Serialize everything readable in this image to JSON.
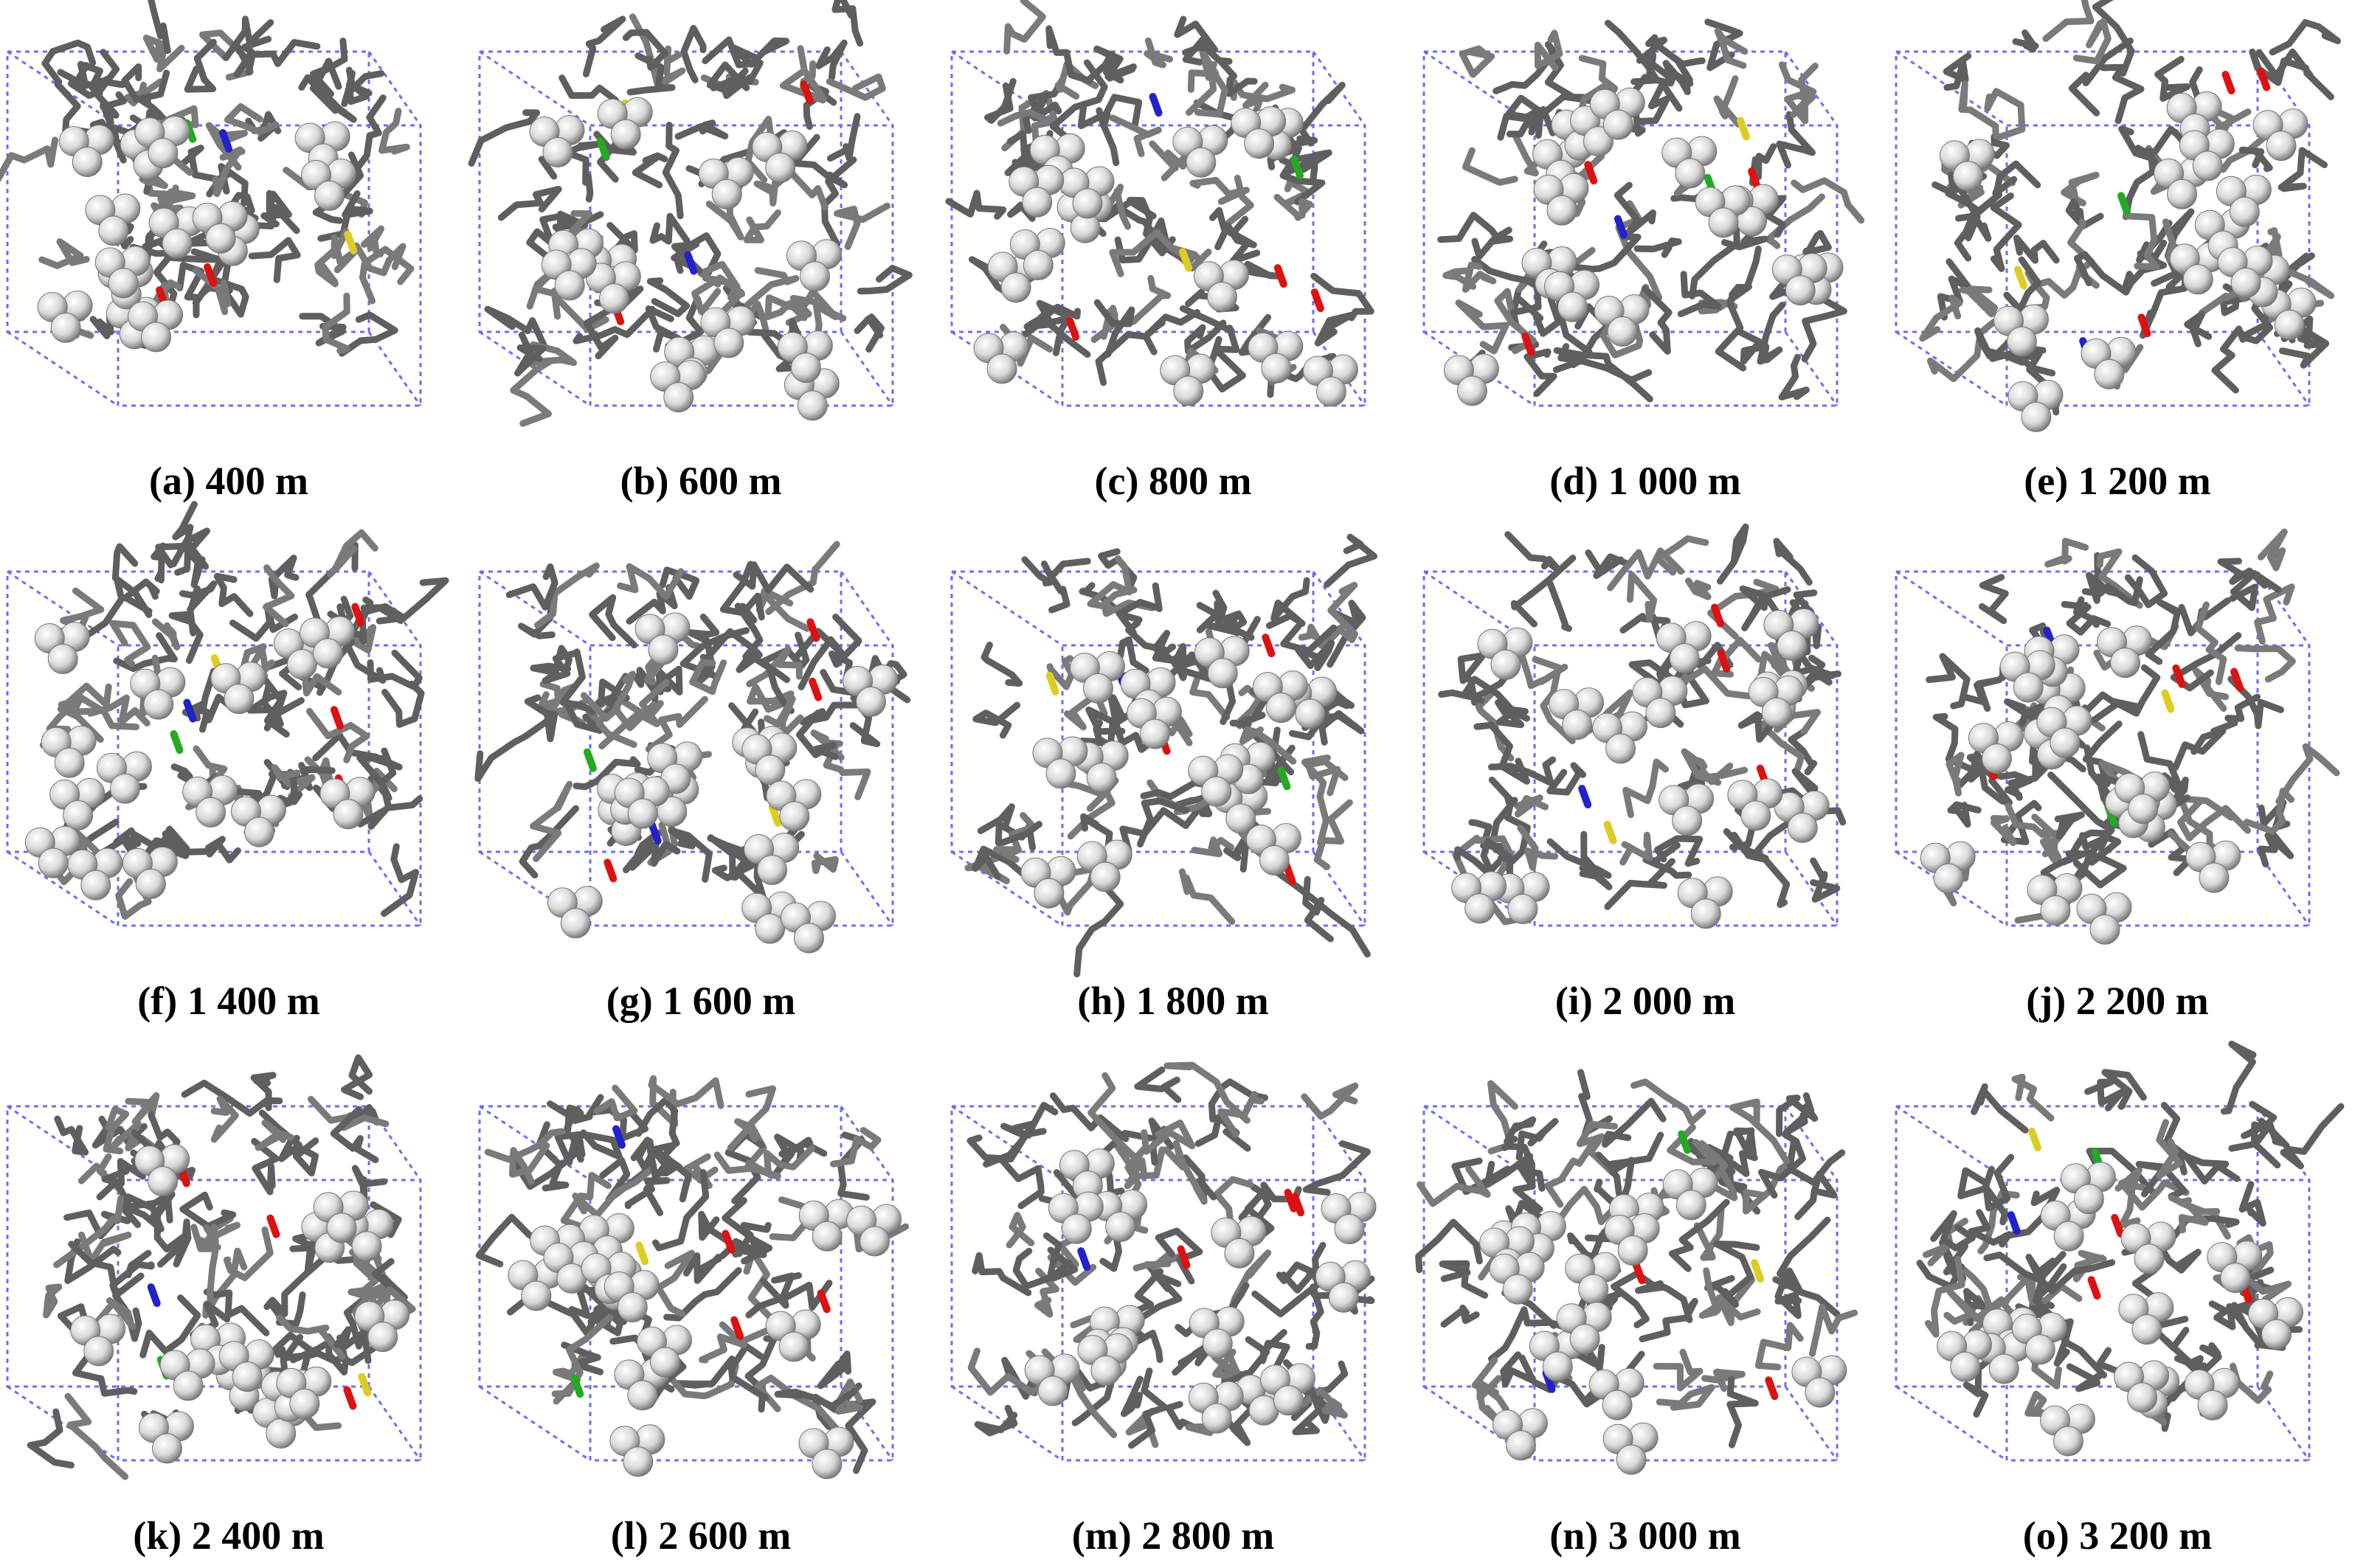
{
  "panels": [
    {
      "label": "(a) 400 m"
    },
    {
      "label": "(b) 600 m"
    },
    {
      "label": "(c) 800 m"
    },
    {
      "label": "(d) 1 000 m"
    },
    {
      "label": "(e) 1 200 m"
    },
    {
      "label": "(f) 1 400 m"
    },
    {
      "label": "(g) 1 600 m"
    },
    {
      "label": "(h) 1 800 m"
    },
    {
      "label": "(i) 2 000 m"
    },
    {
      "label": "(j) 2 200 m"
    },
    {
      "label": "(k) 2 400 m"
    },
    {
      "label": "(l) 2 600 m"
    },
    {
      "label": "(m) 2 800 m"
    },
    {
      "label": "(n) 3 000 m"
    },
    {
      "label": "(o) 3 200 m"
    }
  ]
}
